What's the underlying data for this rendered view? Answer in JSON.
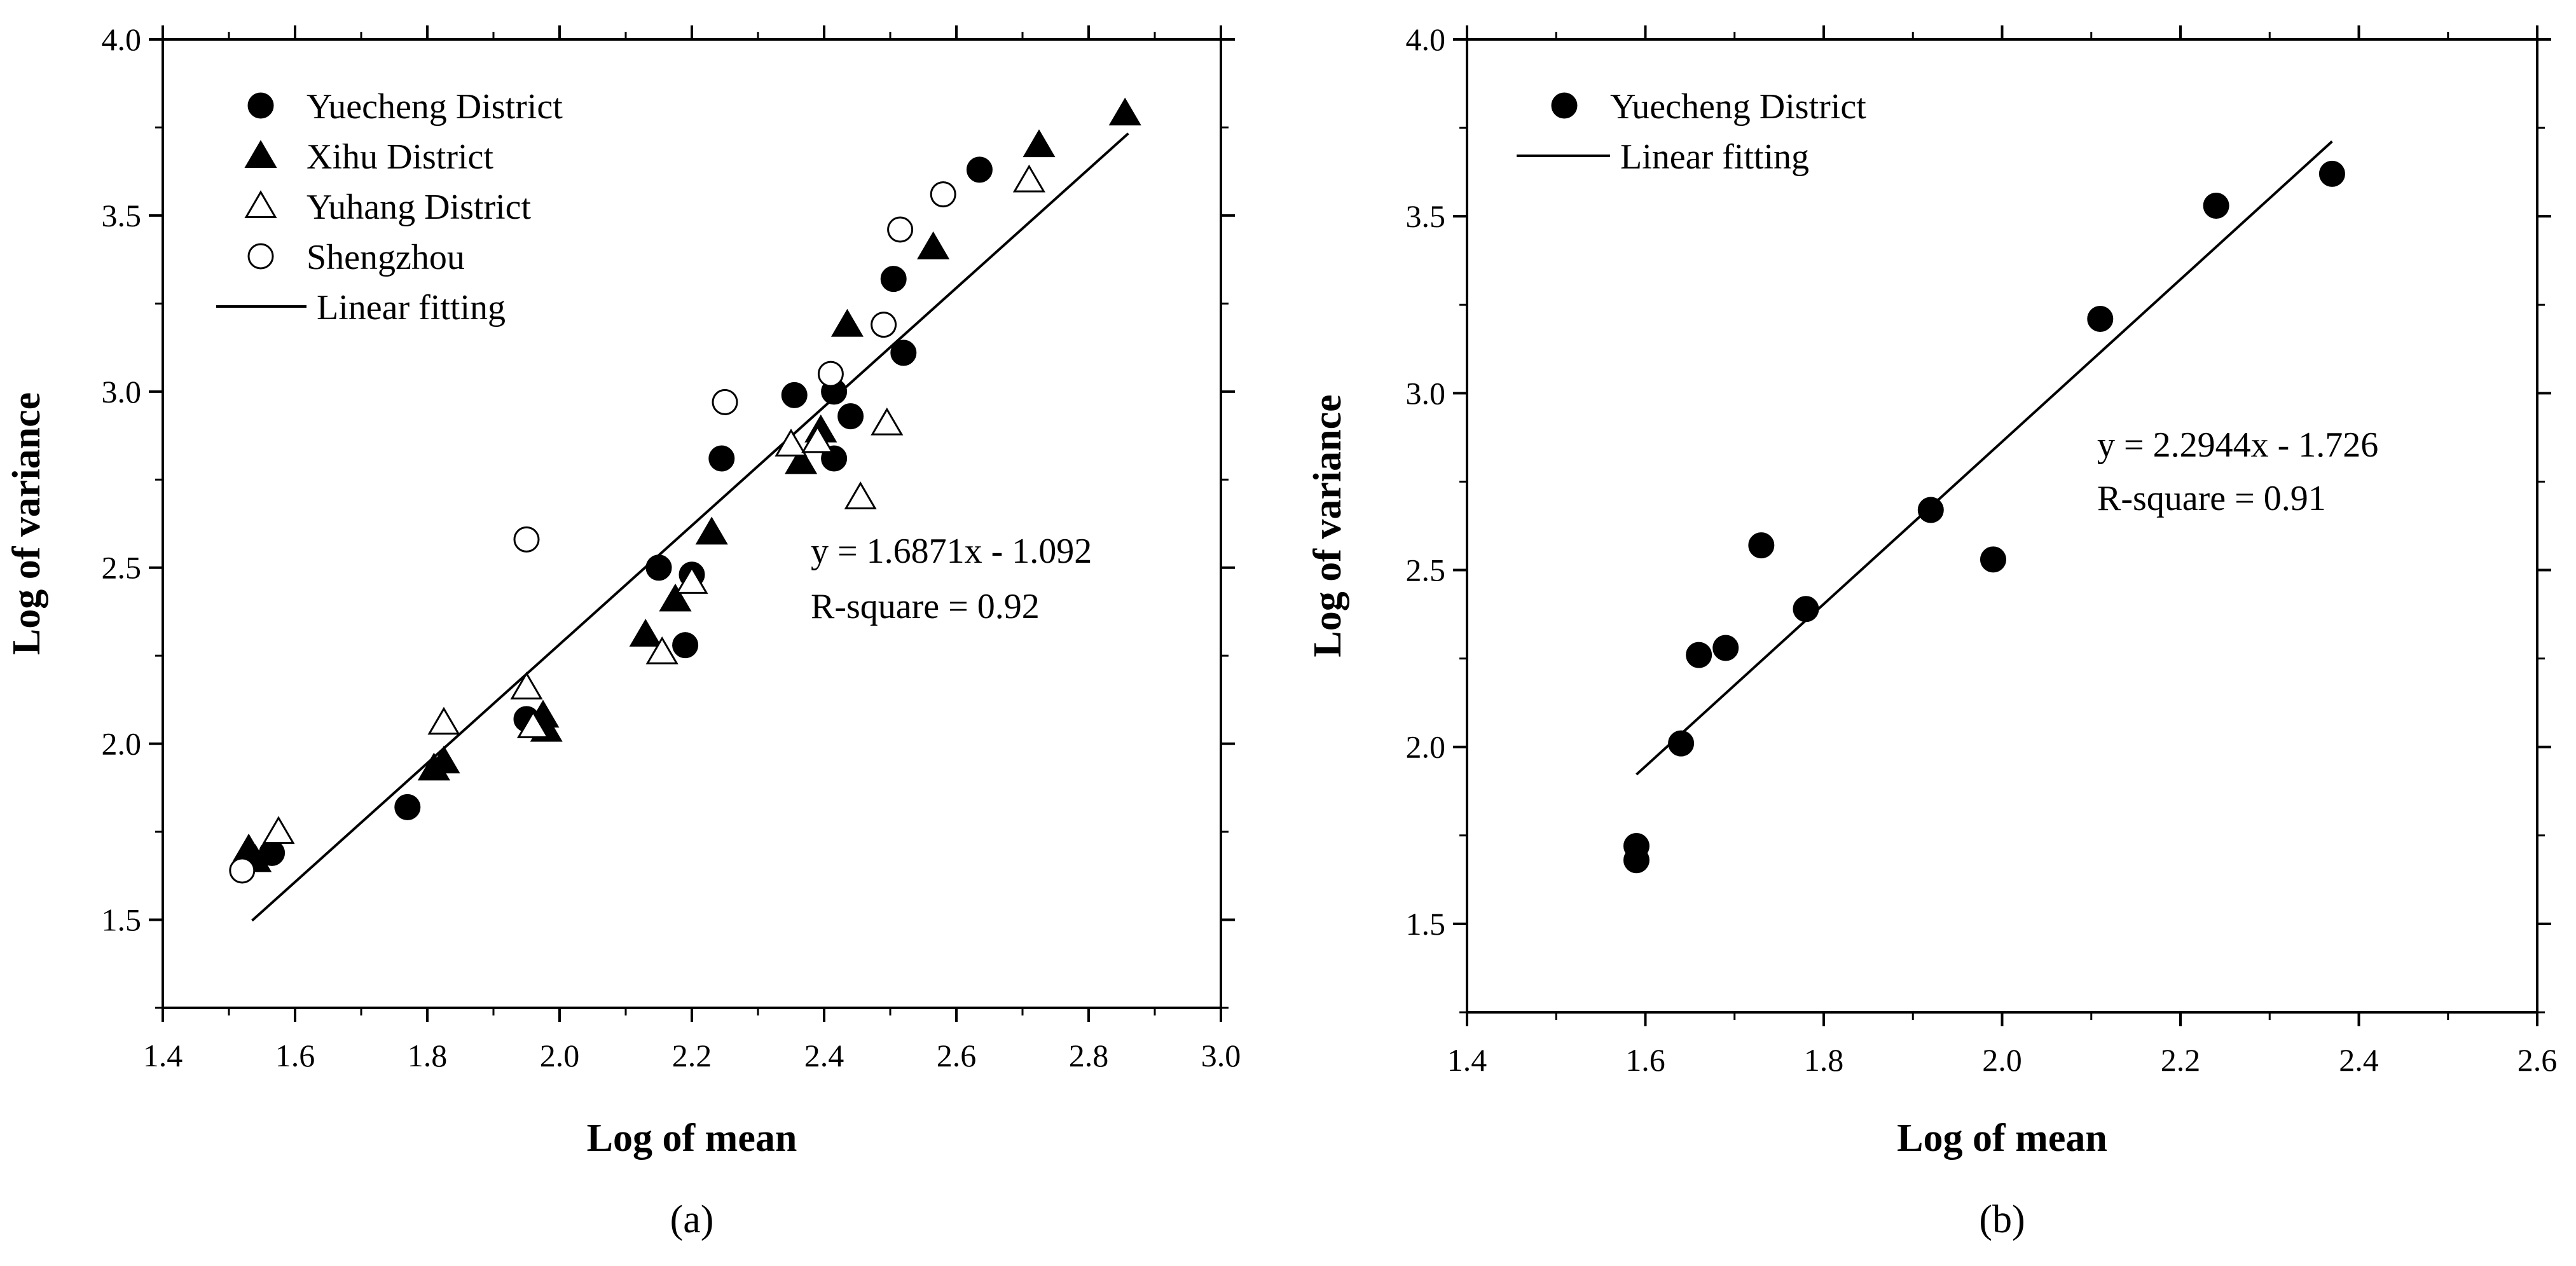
{
  "chart_data": [
    {
      "type": "scatter",
      "panel_label": "(a)",
      "xlabel": "Log of mean",
      "ylabel": "Log of variance",
      "xlim": [
        1.4,
        3.0
      ],
      "ylim": [
        1.25,
        4.0
      ],
      "xticks": [
        1.4,
        1.6,
        1.8,
        2.0,
        2.2,
        2.4,
        2.6,
        2.8,
        3.0
      ],
      "xtick_labels": [
        "1.4",
        "1.6",
        "1.8",
        "2.0",
        "2.2",
        "2.4",
        "2.6",
        "2.8",
        "3.0"
      ],
      "yticks": [
        1.5,
        2.0,
        2.5,
        3.0,
        3.5,
        4.0
      ],
      "ytick_labels": [
        "1.5",
        "2.0",
        "2.5",
        "3.0",
        "3.5",
        "4.0"
      ],
      "legend_position": "top-left",
      "series": [
        {
          "name": "Yuecheng District",
          "marker": "filled-circle",
          "points": [
            [
              1.565,
              1.69
            ],
            [
              1.77,
              1.82
            ],
            [
              1.95,
              2.07
            ],
            [
              2.15,
              2.5
            ],
            [
              2.19,
              2.28
            ],
            [
              2.2,
              2.48
            ],
            [
              2.245,
              2.81
            ],
            [
              2.355,
              2.99
            ],
            [
              2.415,
              3.0
            ],
            [
              2.415,
              2.81
            ],
            [
              2.44,
              2.93
            ],
            [
              2.505,
              3.32
            ],
            [
              2.52,
              3.11
            ],
            [
              2.635,
              3.63
            ]
          ]
        },
        {
          "name": "Xihu District",
          "marker": "filled-triangle",
          "points": [
            [
              1.53,
              1.7
            ],
            [
              1.54,
              1.67
            ],
            [
              1.81,
              1.93
            ],
            [
              1.825,
              1.95
            ],
            [
              1.975,
              2.08
            ],
            [
              1.98,
              2.04
            ],
            [
              2.13,
              2.31
            ],
            [
              2.175,
              2.41
            ],
            [
              2.23,
              2.6
            ],
            [
              2.365,
              2.8
            ],
            [
              2.395,
              2.89
            ],
            [
              2.435,
              3.19
            ],
            [
              2.565,
              3.41
            ],
            [
              2.725,
              3.7
            ],
            [
              2.855,
              3.79
            ]
          ]
        },
        {
          "name": "Yuhang District",
          "marker": "open-triangle",
          "points": [
            [
              1.575,
              1.75
            ],
            [
              1.825,
              2.06
            ],
            [
              1.95,
              2.16
            ],
            [
              1.96,
              2.05
            ],
            [
              2.155,
              2.26
            ],
            [
              2.2,
              2.46
            ],
            [
              2.35,
              2.85
            ],
            [
              2.39,
              2.86
            ],
            [
              2.455,
              2.7
            ],
            [
              2.495,
              2.91
            ],
            [
              2.71,
              3.6
            ]
          ]
        },
        {
          "name": "Shengzhou",
          "marker": "open-circle",
          "points": [
            [
              1.52,
              1.64
            ],
            [
              1.95,
              2.58
            ],
            [
              2.25,
              2.97
            ],
            [
              2.41,
              3.05
            ],
            [
              2.49,
              3.19
            ],
            [
              2.515,
              3.46
            ],
            [
              2.58,
              3.56
            ]
          ]
        }
      ],
      "fit": {
        "name": "Linear fitting",
        "slope": 1.6871,
        "intercept": -1.092,
        "x_range": [
          1.535,
          2.86
        ],
        "equation": "y = 1.6871x - 1.092",
        "r_squared": "R-square = 0.92"
      }
    },
    {
      "type": "scatter",
      "panel_label": "(b)",
      "xlabel": "Log of mean",
      "ylabel": "Log of variance",
      "xlim": [
        1.4,
        2.6
      ],
      "ylim": [
        1.25,
        4.0
      ],
      "xticks": [
        1.4,
        1.6,
        1.8,
        2.0,
        2.2,
        2.4,
        2.6
      ],
      "xtick_labels": [
        "1.4",
        "1.6",
        "1.8",
        "2.0",
        "2.2",
        "2.4",
        "2.6"
      ],
      "yticks": [
        1.5,
        2.0,
        2.5,
        3.0,
        3.5,
        4.0
      ],
      "ytick_labels": [
        "1.5",
        "2.0",
        "2.5",
        "3.0",
        "3.5",
        "4.0"
      ],
      "legend_position": "top-left",
      "series": [
        {
          "name": "Yuecheng District",
          "marker": "filled-circle",
          "points": [
            [
              1.59,
              1.72
            ],
            [
              1.59,
              1.68
            ],
            [
              1.64,
              2.01
            ],
            [
              1.66,
              2.26
            ],
            [
              1.69,
              2.28
            ],
            [
              1.73,
              2.57
            ],
            [
              1.78,
              2.39
            ],
            [
              1.92,
              2.67
            ],
            [
              1.99,
              2.53
            ],
            [
              2.11,
              3.21
            ],
            [
              2.24,
              3.53
            ],
            [
              2.37,
              3.62
            ]
          ]
        }
      ],
      "fit": {
        "name": "Linear fitting",
        "slope": 2.2944,
        "intercept": -1.726,
        "x_range": [
          1.59,
          2.37
        ],
        "equation": "y = 2.2944x - 1.726",
        "r_squared": "R-square = 0.91"
      }
    }
  ]
}
